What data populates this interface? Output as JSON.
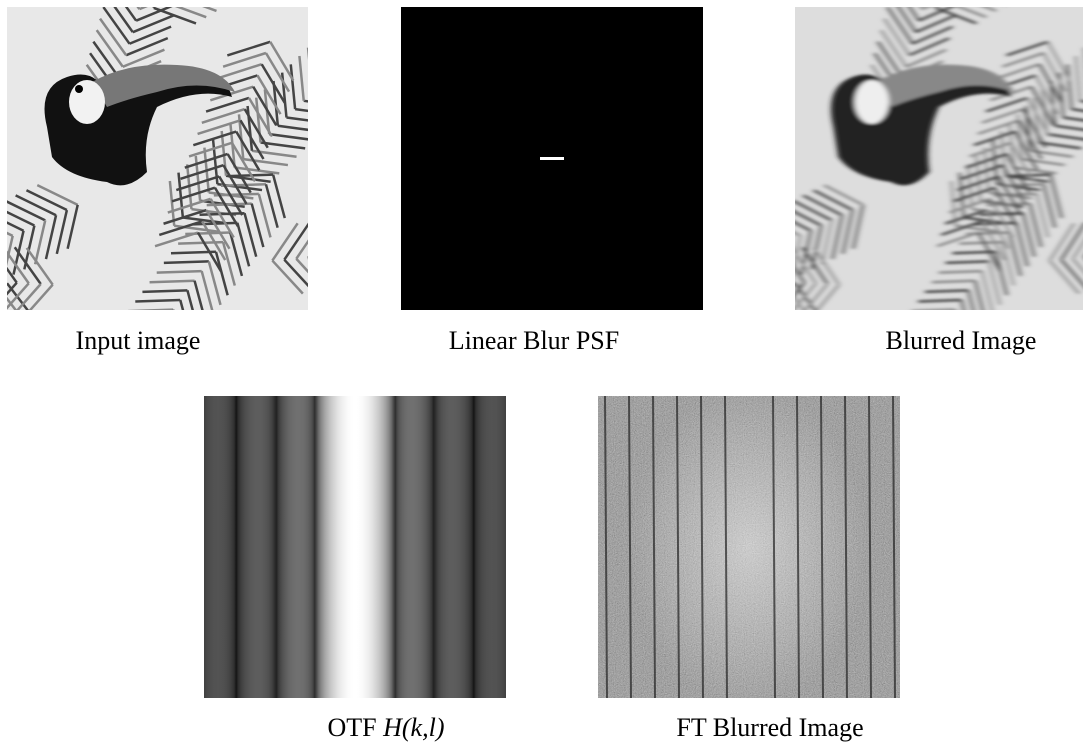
{
  "panels": [
    {
      "caption": "Input image"
    },
    {
      "caption": "Linear Blur PSF"
    },
    {
      "caption": "Blurred Image"
    },
    {
      "caption": "OTF",
      "math": "H(k,l)"
    },
    {
      "caption": "FT Blurred Image"
    }
  ]
}
